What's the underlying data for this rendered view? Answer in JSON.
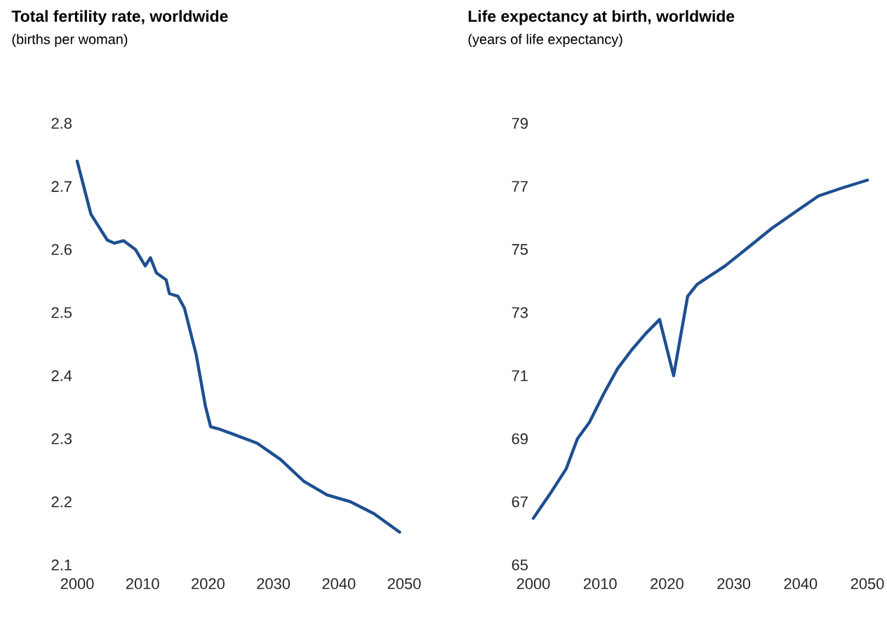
{
  "chart_data": [
    {
      "type": "line",
      "title": "Total fertility rate, worldwide",
      "subtitle": "(births per woman)",
      "xlim": [
        2000,
        2050
      ],
      "xticks": [
        2000,
        2010,
        2020,
        2030,
        2040,
        2050
      ],
      "ylim": [
        2.1,
        2.8
      ],
      "yticks": [
        2.1,
        2.2,
        2.3,
        2.4,
        2.5,
        2.6,
        2.7,
        2.8
      ],
      "line_style": "solid",
      "marker": "none",
      "series": [
        {
          "color": "#1d4f91",
          "x": [
            2000,
            2002.1,
            2004.6,
            2005.7,
            2007.1,
            2008.9,
            2010.4,
            2011.2,
            2012.1,
            2013.6,
            2014.1,
            2015.4,
            2016.4,
            2018.2,
            2019.6,
            2020.4,
            2021.8,
            2023.9,
            2027.5,
            2031.1,
            2034.6,
            2038.2,
            2041.8,
            2045.4,
            2049.3
          ],
          "values": [
            2.74,
            2.656,
            2.615,
            2.61,
            2.614,
            2.6,
            2.574,
            2.587,
            2.563,
            2.552,
            2.53,
            2.526,
            2.507,
            2.433,
            2.352,
            2.319,
            2.315,
            2.307,
            2.293,
            2.267,
            2.233,
            2.211,
            2.2,
            2.181,
            2.152
          ]
        }
      ]
    },
    {
      "type": "line",
      "title": "Life expectancy at birth, worldwide",
      "subtitle": "(years of life expectancy)",
      "xlim": [
        2000,
        2050
      ],
      "xticks": [
        2000,
        2010,
        2020,
        2030,
        2040,
        2050
      ],
      "ylim": [
        65,
        79
      ],
      "yticks": [
        65,
        67,
        69,
        71,
        73,
        75,
        77,
        79
      ],
      "line_style": "solid",
      "marker": "none",
      "series": [
        {
          "color": "#1d4f91",
          "x": [
            2000,
            2002.4,
            2004.9,
            2006.6,
            2008.4,
            2010.5,
            2012.6,
            2014.7,
            2016.8,
            2018.9,
            2021,
            2023.1,
            2024.5,
            2028.7,
            2032.2,
            2035.7,
            2039.2,
            2042.7,
            2046.2,
            2050
          ],
          "values": [
            66.48,
            67.22,
            68.04,
            69.0,
            69.52,
            70.41,
            71.22,
            71.81,
            72.33,
            72.78,
            71.0,
            73.52,
            73.89,
            74.48,
            75.07,
            75.67,
            76.19,
            76.7,
            76.95,
            77.2
          ]
        }
      ]
    }
  ]
}
